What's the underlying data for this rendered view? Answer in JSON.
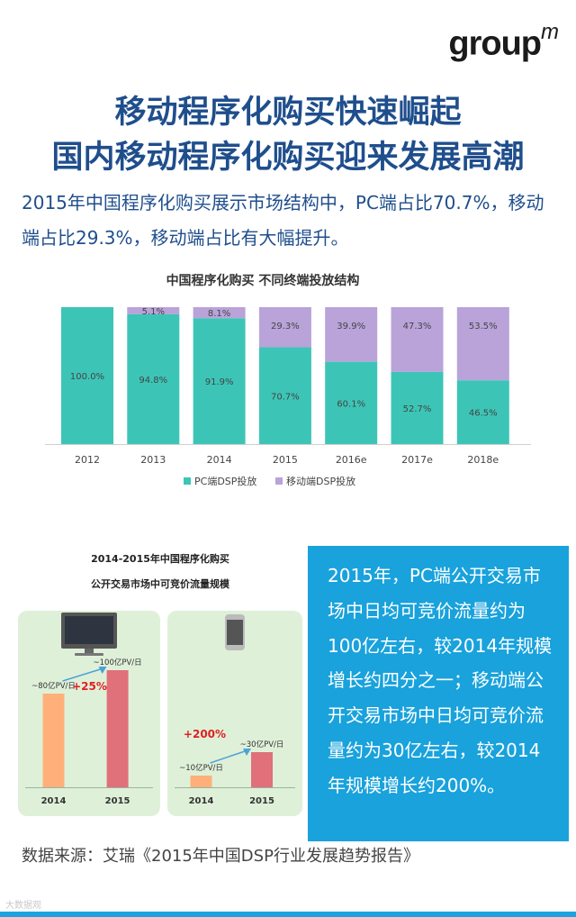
{
  "logo": {
    "text": "group",
    "mark": "m"
  },
  "headline": {
    "line1": "移动程序化购买快速崛起",
    "line2": "国内移动程序化购买迎来发展高潮"
  },
  "intro": "2015年中国程序化购买展示市场结构中，PC端占比70.7%，移动端占比29.3%，移动端占比有大幅提升。",
  "chart_data": [
    {
      "type": "bar",
      "stacked": true,
      "percent": true,
      "title": "中国程序化购买 不同终端投放结构",
      "categories": [
        "2012",
        "2013",
        "2014",
        "2015",
        "2016e",
        "2017e",
        "2018e"
      ],
      "series": [
        {
          "name": "PC端DSP投放",
          "color": "#3cc5b7",
          "values": [
            100.0,
            94.8,
            91.9,
            70.7,
            60.1,
            52.7,
            46.5
          ]
        },
        {
          "name": "移动端DSP投放",
          "color": "#b9a3d9",
          "values": [
            0,
            5.1,
            8.1,
            29.3,
            39.9,
            47.3,
            53.5
          ]
        }
      ],
      "labels": {
        "PC": [
          "100.0%",
          "94.8%",
          "91.9%",
          "70.7%",
          "60.1%",
          "52.7%",
          "46.5%"
        ],
        "Mobile": [
          "",
          "5.1%",
          "8.1%",
          "29.3%",
          "39.9%",
          "47.3%",
          "53.5%"
        ]
      },
      "ylim": [
        0,
        100
      ],
      "legend": "bottom",
      "grid": false
    },
    {
      "type": "bar",
      "title_line1": "2014-2015年中国程序化购买",
      "title_line2": "公开交易市场中可竞价流量规模",
      "panels": [
        {
          "device": "pc",
          "categories": [
            "2014",
            "2015"
          ],
          "values": [
            80,
            100
          ],
          "labels": [
            "~80亿PV/日",
            "~100亿PV/日"
          ],
          "growth": "+25%",
          "colors": [
            "#ffb07a",
            "#e0707a"
          ]
        },
        {
          "device": "mobile",
          "categories": [
            "2014",
            "2015"
          ],
          "values": [
            10,
            30
          ],
          "labels": [
            "~10亿PV/日",
            "~30亿PV/日"
          ],
          "growth": "+200%",
          "colors": [
            "#ffb07a",
            "#e0707a"
          ]
        }
      ]
    }
  ],
  "bluebox": "2015年，PC端公开交易市场中日均可竞价流量约为100亿左右，较2014年规模增长约四分之一；移动端公开交易市场中日均可竞价流量约为30亿左右，较2014年规模增长约200%。",
  "source": "数据来源：艾瑞《2015年中国DSP行业发展趋势报告》",
  "watermark": "大数据观",
  "colors": {
    "title": "#1f4e8c",
    "accent": "#19a2dc"
  }
}
